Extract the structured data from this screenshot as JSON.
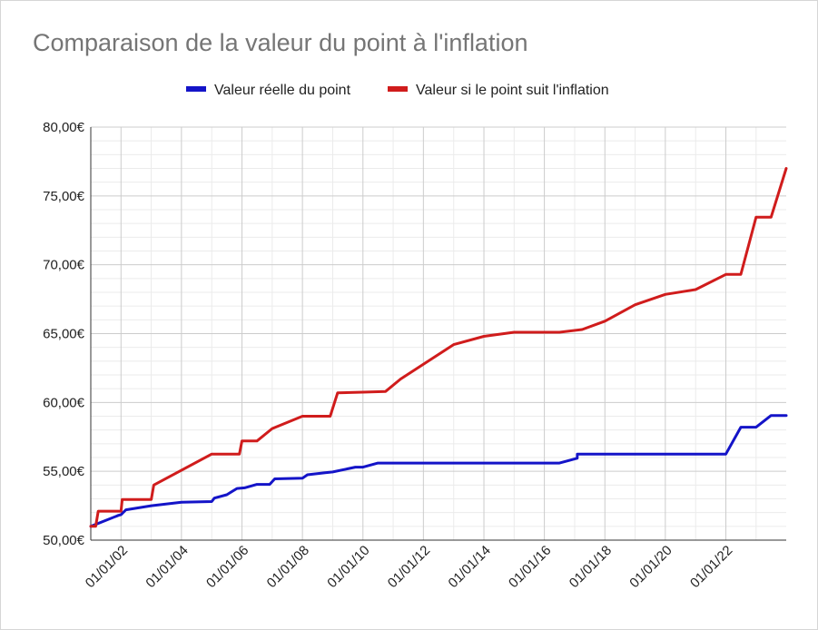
{
  "chart_data": {
    "type": "line",
    "title": "Comparaison de la valeur du point à l'inflation",
    "legend_position": "top",
    "grid": true,
    "x_range": [
      "2001-01-01",
      "2023-12-31"
    ],
    "ylim": [
      50,
      80
    ],
    "y_ticks": [
      50,
      55,
      60,
      65,
      70,
      75,
      80
    ],
    "y_tick_labels": [
      "50,00€",
      "55,00€",
      "60,00€",
      "65,00€",
      "70,00€",
      "75,00€",
      "80,00€"
    ],
    "x_ticks": [
      "2002-01-01",
      "2004-01-01",
      "2006-01-01",
      "2008-01-01",
      "2010-01-01",
      "2012-01-01",
      "2014-01-01",
      "2016-01-01",
      "2018-01-01",
      "2020-01-01",
      "2022-01-01"
    ],
    "x_tick_labels": [
      "01/01/02",
      "01/01/04",
      "01/01/06",
      "01/01/08",
      "01/01/10",
      "01/01/12",
      "01/01/14",
      "01/01/16",
      "01/01/18",
      "01/01/20",
      "01/01/22"
    ],
    "series": [
      {
        "name": "Valeur réelle du point",
        "color": "#1414c8",
        "points": [
          [
            "2001-01-01",
            51.0
          ],
          [
            "2001-12-01",
            51.8
          ],
          [
            "2002-01-01",
            51.85
          ],
          [
            "2002-03-01",
            52.2
          ],
          [
            "2003-01-01",
            52.5
          ],
          [
            "2004-01-01",
            52.75
          ],
          [
            "2005-01-01",
            52.8
          ],
          [
            "2005-02-01",
            53.05
          ],
          [
            "2005-07-01",
            53.3
          ],
          [
            "2005-11-01",
            53.75
          ],
          [
            "2006-02-01",
            53.8
          ],
          [
            "2006-07-01",
            54.05
          ],
          [
            "2006-12-01",
            54.05
          ],
          [
            "2007-02-01",
            54.45
          ],
          [
            "2008-01-01",
            54.5
          ],
          [
            "2008-03-01",
            54.75
          ],
          [
            "2008-10-01",
            54.9
          ],
          [
            "2009-01-01",
            54.95
          ],
          [
            "2009-10-01",
            55.3
          ],
          [
            "2010-01-01",
            55.3
          ],
          [
            "2010-07-01",
            55.6
          ],
          [
            "2016-07-01",
            55.6
          ],
          [
            "2017-02-01",
            55.95
          ],
          [
            "2017-02-02",
            56.25
          ],
          [
            "2022-01-01",
            56.25
          ],
          [
            "2022-07-01",
            58.2
          ],
          [
            "2023-01-01",
            58.2
          ],
          [
            "2023-07-01",
            59.05
          ],
          [
            "2023-12-31",
            59.05
          ]
        ]
      },
      {
        "name": "Valeur si le point suit l'inflation",
        "color": "#d01c1c",
        "points": [
          [
            "2001-01-01",
            51.0
          ],
          [
            "2001-03-01",
            51.0
          ],
          [
            "2001-04-01",
            52.1
          ],
          [
            "2002-01-01",
            52.1
          ],
          [
            "2002-01-15",
            52.95
          ],
          [
            "2003-01-01",
            52.95
          ],
          [
            "2003-02-01",
            54.0
          ],
          [
            "2005-01-01",
            56.25
          ],
          [
            "2005-12-01",
            56.25
          ],
          [
            "2006-01-01",
            57.2
          ],
          [
            "2006-07-01",
            57.2
          ],
          [
            "2007-01-01",
            58.1
          ],
          [
            "2008-01-01",
            59.0
          ],
          [
            "2008-12-01",
            59.0
          ],
          [
            "2009-03-01",
            60.7
          ],
          [
            "2010-01-01",
            60.75
          ],
          [
            "2010-10-01",
            60.8
          ],
          [
            "2011-04-01",
            61.7
          ],
          [
            "2013-01-01",
            64.2
          ],
          [
            "2014-01-01",
            64.8
          ],
          [
            "2015-01-01",
            65.1
          ],
          [
            "2016-07-01",
            65.1
          ],
          [
            "2017-04-01",
            65.3
          ],
          [
            "2018-01-01",
            65.9
          ],
          [
            "2019-01-01",
            67.1
          ],
          [
            "2020-01-01",
            67.85
          ],
          [
            "2021-01-01",
            68.2
          ],
          [
            "2022-01-01",
            69.3
          ],
          [
            "2022-07-01",
            69.3
          ],
          [
            "2023-01-01",
            73.45
          ],
          [
            "2023-07-01",
            73.45
          ],
          [
            "2023-12-31",
            77.0
          ]
        ]
      }
    ]
  }
}
